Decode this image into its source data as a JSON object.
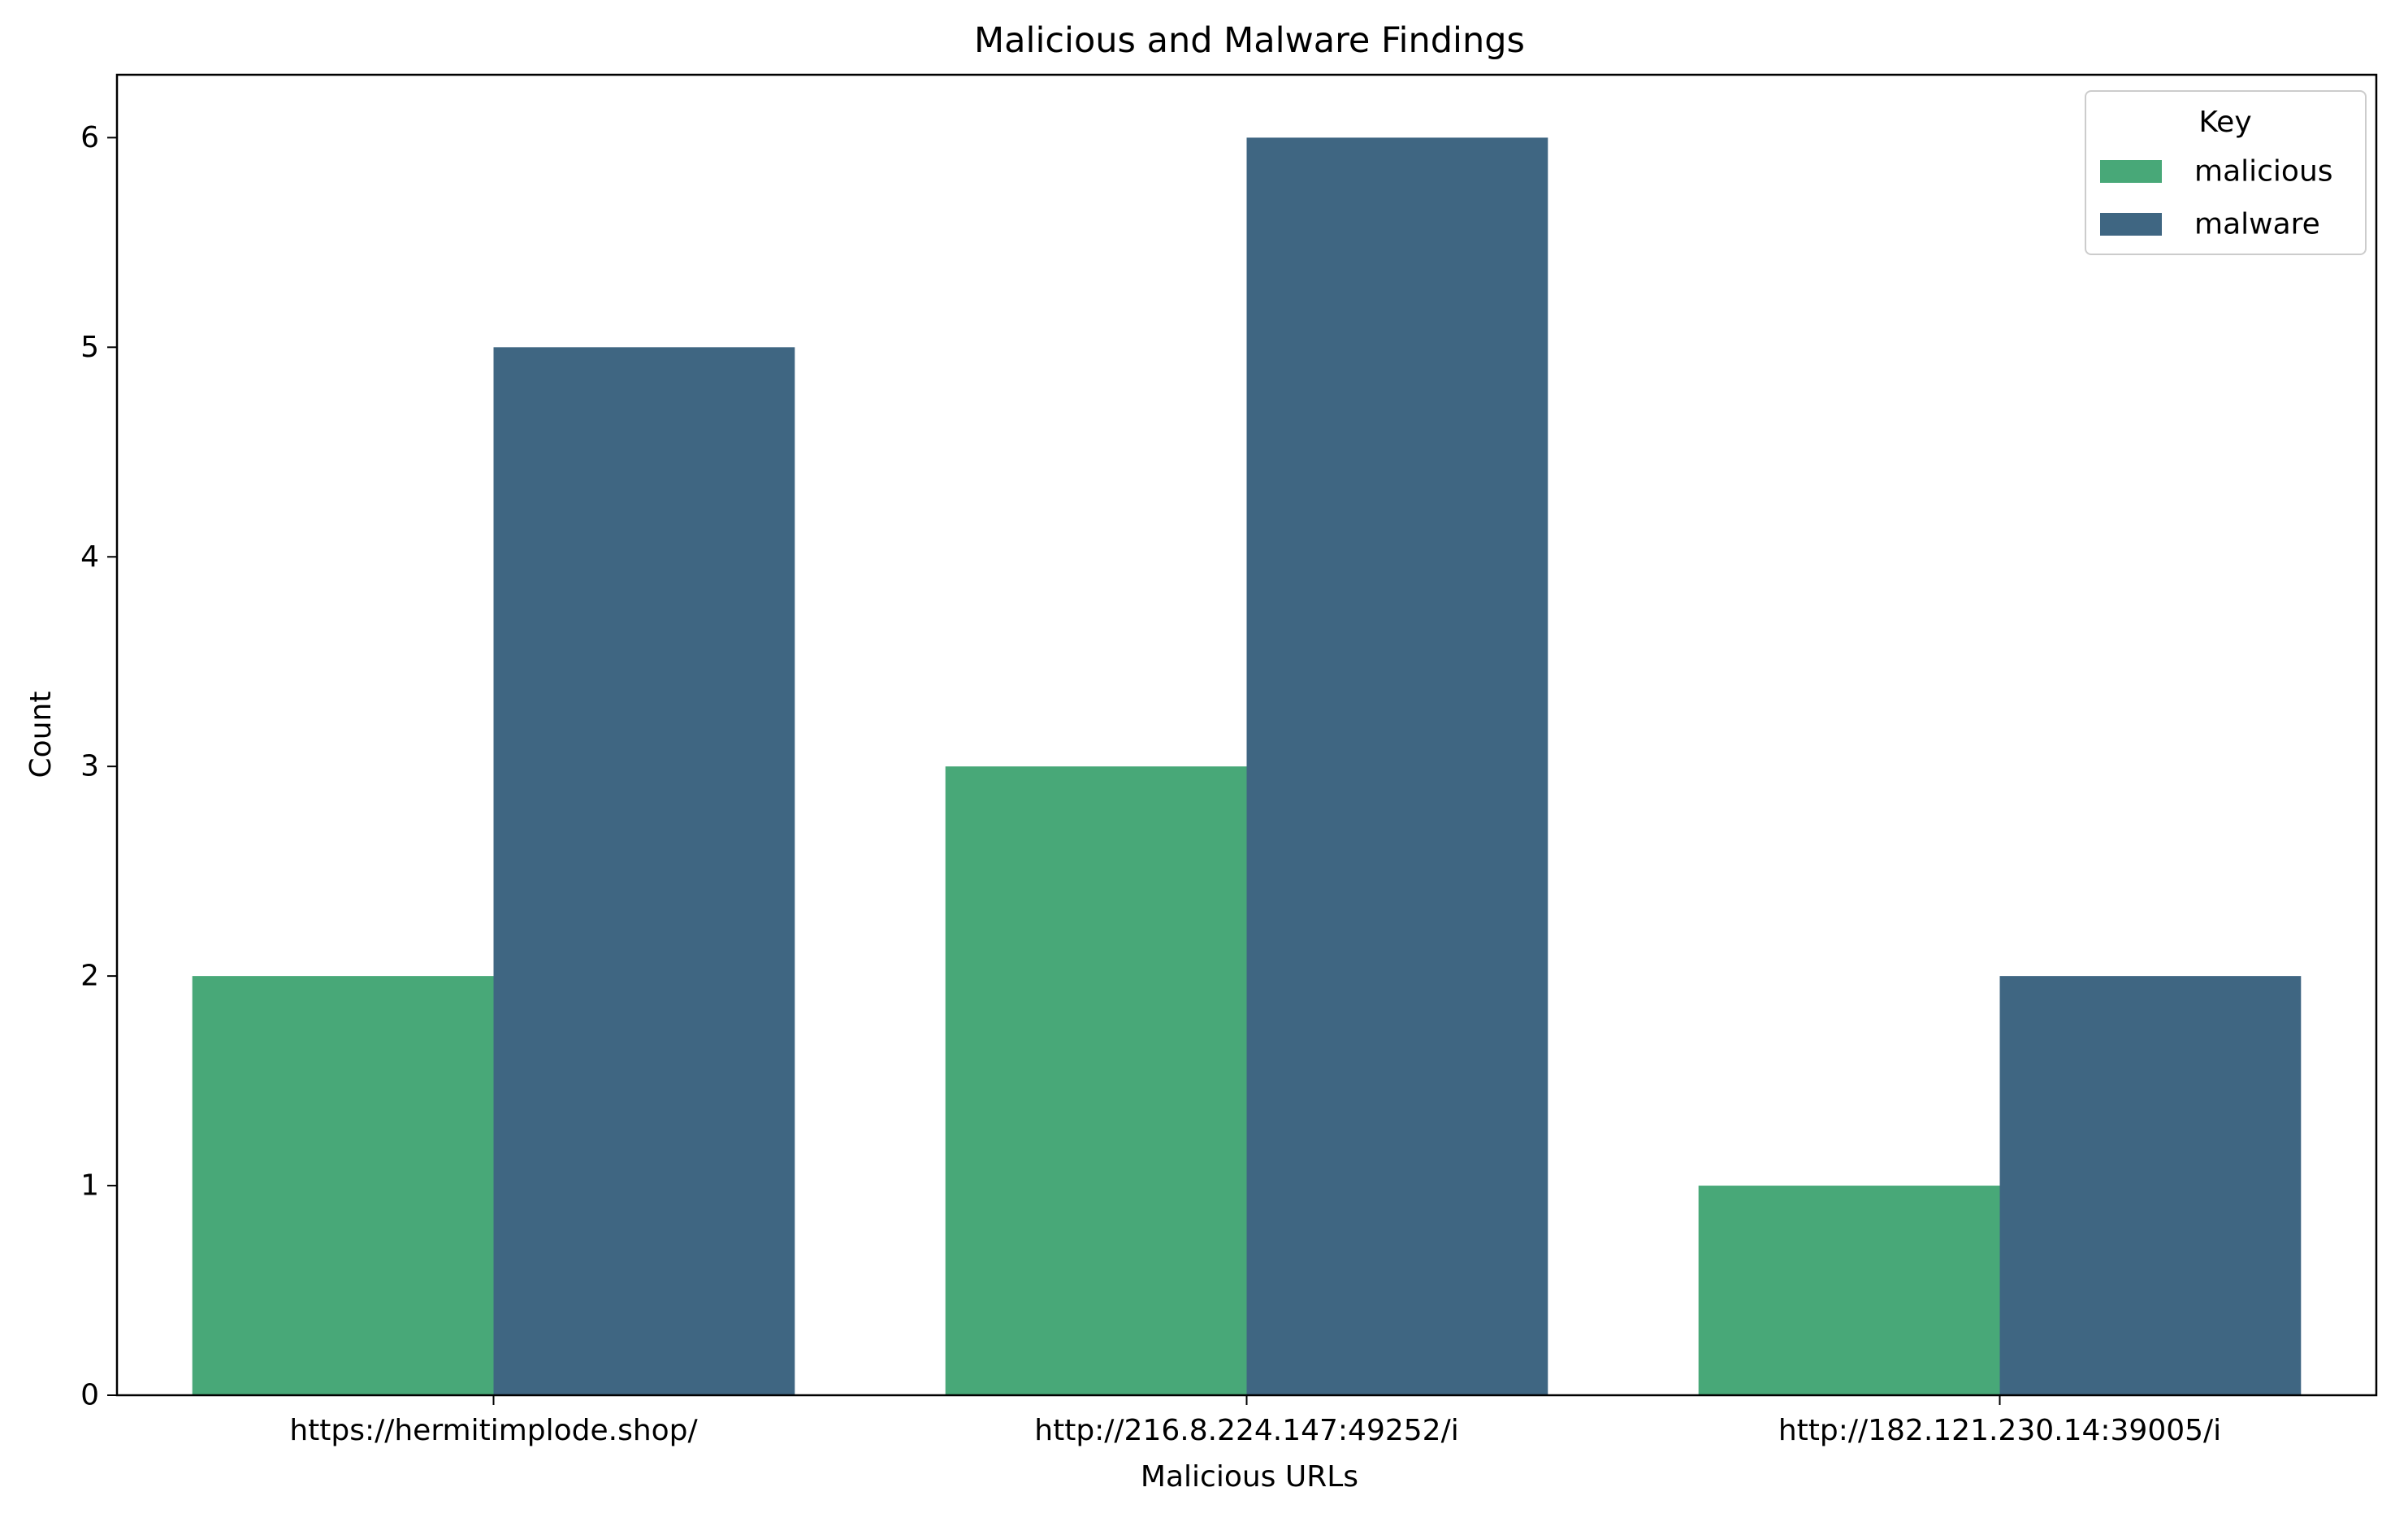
{
  "chart_data": {
    "type": "bar",
    "title": "Malicious and Malware Findings",
    "xlabel": "Malicious URLs",
    "ylabel": "Count",
    "categories": [
      "https://hermitimplode.shop/",
      "http://216.8.224.147:49252/i",
      "http://182.121.230.14:39005/i"
    ],
    "series": [
      {
        "name": "malicious",
        "color": "#48a878",
        "values": [
          2,
          3,
          1
        ]
      },
      {
        "name": "malware",
        "color": "#3f6682",
        "values": [
          5,
          6,
          2
        ]
      }
    ],
    "yticks": [
      0,
      1,
      2,
      3,
      4,
      5,
      6
    ],
    "ylim": [
      0,
      6.3
    ],
    "grid": false,
    "legend": {
      "title": "Key",
      "placement": "top-right"
    }
  }
}
